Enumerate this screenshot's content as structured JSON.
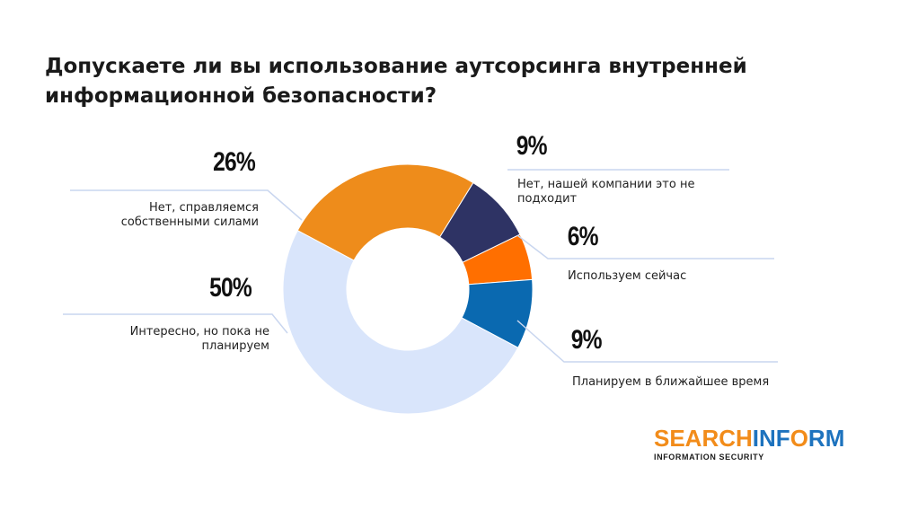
{
  "title": "Допускаете ли вы использование аутсорсинга внутренней информационной безопасности?",
  "chart_data": {
    "type": "pie",
    "donut": true,
    "categories": [
      "Нет, справляемся собственными силами",
      "Нет, нашей компании это не подходит",
      "Используем сейчас",
      "Планируем в ближайшее время",
      "Интересно, но пока не планируем"
    ],
    "values": [
      26,
      9,
      6,
      9,
      50
    ],
    "labels": [
      "26%",
      "9%",
      "6%",
      "9%",
      "50%"
    ],
    "colors": [
      "#ee8c1b",
      "#2e3364",
      "#ff6f00",
      "#0a69b0",
      "#d9e5fb"
    ]
  },
  "logo": {
    "main_a": "SEARCH",
    "main_b": "INF",
    "main_c": "O",
    "main_d": "RM",
    "sub": "INFORMATION SECURITY"
  }
}
